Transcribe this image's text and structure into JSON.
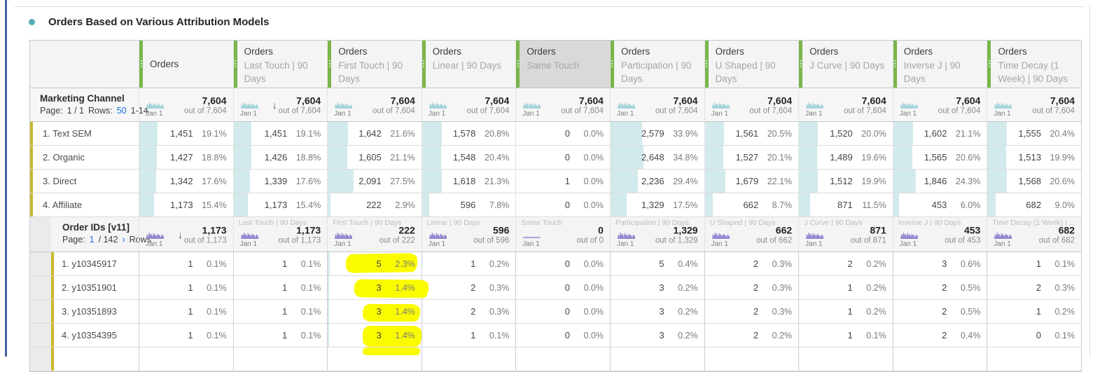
{
  "title": "Orders Based on Various Attribution Models",
  "icons": {
    "sort_desc": "↓",
    "chevron_right": "›",
    "panel_bullet": "dot",
    "sparkline": "area-sparkline"
  },
  "colors": {
    "accent_green": "#79b54a",
    "selected_header_bg": "#d9d9d9",
    "header_bg": "#f4f4f4",
    "bar_teal": "#d3eaec",
    "sparkline_teal": "#a6d4db",
    "sparkline_purple": "#9489d1",
    "highlight_yellow": "#fbfb00",
    "link_blue": "#1a6fe0",
    "row_accent_olive": "#c9b82f",
    "panel_line_blue": "#47609d",
    "title_bullet_teal": "#58abb4"
  },
  "columns": [
    {
      "metric": "Orders",
      "model": "",
      "selected": false
    },
    {
      "metric": "Orders",
      "model": "Last Touch | 90 Days",
      "selected": false
    },
    {
      "metric": "Orders",
      "model": "First Touch | 90 Days",
      "selected": false
    },
    {
      "metric": "Orders",
      "model": "Linear | 90 Days",
      "selected": false
    },
    {
      "metric": "Orders",
      "model": "Same Touch",
      "selected": true
    },
    {
      "metric": "Orders",
      "model": "Participation | 90 Days",
      "selected": false
    },
    {
      "metric": "Orders",
      "model": "U Shaped | 90 Days",
      "selected": false
    },
    {
      "metric": "Orders",
      "model": "J Curve | 90 Days",
      "selected": false
    },
    {
      "metric": "Orders",
      "model": "Inverse J | 90 Days",
      "selected": false
    },
    {
      "metric": "Orders",
      "model": "Time Decay (1 Week) | 90 Days",
      "selected": false
    }
  ],
  "channel_section": {
    "dimension": "Marketing Channel",
    "pager_parts": [
      {
        "text": "Page:",
        "link": false
      },
      {
        "text": "1 / 1",
        "link": false
      },
      {
        "text": "Rows:",
        "link": false
      },
      {
        "text": "50",
        "link": true
      },
      {
        "text": "1-14",
        "link": false
      }
    ],
    "sort_column": 1,
    "date_label": "Jan 1",
    "totals": [
      {
        "label": "",
        "value": "7,604",
        "out_of": "out of 7,604",
        "flat": false
      },
      {
        "label": "",
        "value": "7,604",
        "out_of": "out of 7,604",
        "flat": false
      },
      {
        "label": "",
        "value": "7,604",
        "out_of": "out of 7,604",
        "flat": false
      },
      {
        "label": "",
        "value": "7,604",
        "out_of": "out of 7,604",
        "flat": false
      },
      {
        "label": "",
        "value": "7,604",
        "out_of": "out of 7,604",
        "flat": false
      },
      {
        "label": "",
        "value": "7,604",
        "out_of": "out of 7,604",
        "flat": false
      },
      {
        "label": "",
        "value": "7,604",
        "out_of": "out of 7,604",
        "flat": false
      },
      {
        "label": "",
        "value": "7,604",
        "out_of": "out of 7,604",
        "flat": false
      },
      {
        "label": "",
        "value": "7,604",
        "out_of": "out of 7,604",
        "flat": false
      },
      {
        "label": "",
        "value": "7,604",
        "out_of": "out of 7,604",
        "flat": false
      }
    ],
    "rows": [
      {
        "label": "1. Text SEM",
        "cells": [
          {
            "v": "1,451",
            "p": "19.1%"
          },
          {
            "v": "1,451",
            "p": "19.1%"
          },
          {
            "v": "1,642",
            "p": "21.6%"
          },
          {
            "v": "1,578",
            "p": "20.8%"
          },
          {
            "v": "0",
            "p": "0.0%"
          },
          {
            "v": "2,579",
            "p": "33.9%"
          },
          {
            "v": "1,561",
            "p": "20.5%"
          },
          {
            "v": "1,520",
            "p": "20.0%"
          },
          {
            "v": "1,602",
            "p": "21.1%"
          },
          {
            "v": "1,555",
            "p": "20.4%"
          }
        ]
      },
      {
        "label": "2. Organic",
        "cells": [
          {
            "v": "1,427",
            "p": "18.8%"
          },
          {
            "v": "1,426",
            "p": "18.8%"
          },
          {
            "v": "1,605",
            "p": "21.1%"
          },
          {
            "v": "1,548",
            "p": "20.4%"
          },
          {
            "v": "0",
            "p": "0.0%"
          },
          {
            "v": "2,648",
            "p": "34.8%"
          },
          {
            "v": "1,527",
            "p": "20.1%"
          },
          {
            "v": "1,489",
            "p": "19.6%"
          },
          {
            "v": "1,565",
            "p": "20.6%"
          },
          {
            "v": "1,513",
            "p": "19.9%"
          }
        ]
      },
      {
        "label": "3. Direct",
        "cells": [
          {
            "v": "1,342",
            "p": "17.6%"
          },
          {
            "v": "1,339",
            "p": "17.6%"
          },
          {
            "v": "2,091",
            "p": "27.5%"
          },
          {
            "v": "1,618",
            "p": "21.3%"
          },
          {
            "v": "1",
            "p": "0.0%"
          },
          {
            "v": "2,236",
            "p": "29.4%"
          },
          {
            "v": "1,679",
            "p": "22.1%"
          },
          {
            "v": "1,512",
            "p": "19.9%"
          },
          {
            "v": "1,846",
            "p": "24.3%"
          },
          {
            "v": "1,568",
            "p": "20.6%"
          }
        ]
      },
      {
        "label": "4. Affiliate",
        "cells": [
          {
            "v": "1,173",
            "p": "15.4%"
          },
          {
            "v": "1,173",
            "p": "15.4%"
          },
          {
            "v": "222",
            "p": "2.9%"
          },
          {
            "v": "596",
            "p": "7.8%"
          },
          {
            "v": "0",
            "p": "0.0%"
          },
          {
            "v": "1,329",
            "p": "17.5%"
          },
          {
            "v": "662",
            "p": "8.7%"
          },
          {
            "v": "871",
            "p": "11.5%"
          },
          {
            "v": "453",
            "p": "6.0%"
          },
          {
            "v": "682",
            "p": "9.0%"
          }
        ]
      }
    ]
  },
  "orders_section": {
    "dimension": "Order IDs [v11]",
    "pager_parts": [
      {
        "text": "Page:",
        "link": false
      },
      {
        "text": "1",
        "link": true
      },
      {
        "text": "/ 142",
        "link": false
      },
      {
        "text": "›",
        "link": true
      },
      {
        "text": "Rows",
        "link": false
      }
    ],
    "sort_column": 0,
    "date_label": "Jan 1",
    "totals": [
      {
        "label": "",
        "value": "1,173",
        "out_of": "out of 1,173",
        "flat": false
      },
      {
        "label": "Last Touch | 90 Days",
        "value": "1,173",
        "out_of": "out of 1,173",
        "flat": false
      },
      {
        "label": "First Touch | 90 Days",
        "value": "222",
        "out_of": "out of 222",
        "flat": false
      },
      {
        "label": "Linear | 90 Days",
        "value": "596",
        "out_of": "out of 596",
        "flat": false
      },
      {
        "label": "Same Touch",
        "value": "0",
        "out_of": "out of 0",
        "flat": true
      },
      {
        "label": "Participation | 90 Days",
        "value": "1,329",
        "out_of": "out of 1,329",
        "flat": false
      },
      {
        "label": "U Shaped | 90 Days",
        "value": "662",
        "out_of": "out of 662",
        "flat": false
      },
      {
        "label": "J Curve | 90 Days",
        "value": "871",
        "out_of": "out of 871",
        "flat": false
      },
      {
        "label": "Inverse J | 90 Days",
        "value": "453",
        "out_of": "out of 453",
        "flat": false
      },
      {
        "label": "Time Decay (1 Week) | ...",
        "value": "682",
        "out_of": "out of 682",
        "flat": false
      }
    ],
    "rows": [
      {
        "label": "1. y10345917",
        "cells": [
          {
            "v": "1",
            "p": "0.1%"
          },
          {
            "v": "1",
            "p": "0.1%"
          },
          {
            "v": "5",
            "p": "2.3%",
            "hl": true
          },
          {
            "v": "1",
            "p": "0.2%"
          },
          {
            "v": "0",
            "p": "0.0%"
          },
          {
            "v": "5",
            "p": "0.4%"
          },
          {
            "v": "2",
            "p": "0.3%"
          },
          {
            "v": "2",
            "p": "0.2%"
          },
          {
            "v": "3",
            "p": "0.6%"
          },
          {
            "v": "1",
            "p": "0.1%"
          }
        ]
      },
      {
        "label": "2. y10351901",
        "cells": [
          {
            "v": "1",
            "p": "0.1%"
          },
          {
            "v": "1",
            "p": "0.1%"
          },
          {
            "v": "3",
            "p": "1.4%",
            "hl": true
          },
          {
            "v": "2",
            "p": "0.3%"
          },
          {
            "v": "0",
            "p": "0.0%"
          },
          {
            "v": "3",
            "p": "0.2%"
          },
          {
            "v": "2",
            "p": "0.3%"
          },
          {
            "v": "1",
            "p": "0.2%"
          },
          {
            "v": "2",
            "p": "0.5%"
          },
          {
            "v": "2",
            "p": "0.3%"
          }
        ]
      },
      {
        "label": "3. y10351893",
        "cells": [
          {
            "v": "1",
            "p": "0.1%"
          },
          {
            "v": "1",
            "p": "0.1%"
          },
          {
            "v": "3",
            "p": "1.4%",
            "hl": true
          },
          {
            "v": "2",
            "p": "0.3%"
          },
          {
            "v": "0",
            "p": "0.0%"
          },
          {
            "v": "3",
            "p": "0.2%"
          },
          {
            "v": "2",
            "p": "0.3%"
          },
          {
            "v": "1",
            "p": "0.2%"
          },
          {
            "v": "2",
            "p": "0.5%"
          },
          {
            "v": "1",
            "p": "0.2%"
          }
        ]
      },
      {
        "label": "4. y10354395",
        "cells": [
          {
            "v": "1",
            "p": "0.1%"
          },
          {
            "v": "1",
            "p": "0.1%"
          },
          {
            "v": "3",
            "p": "1.4%",
            "hl": true
          },
          {
            "v": "1",
            "p": "0.1%"
          },
          {
            "v": "0",
            "p": "0.0%"
          },
          {
            "v": "3",
            "p": "0.2%"
          },
          {
            "v": "2",
            "p": "0.2%"
          },
          {
            "v": "1",
            "p": "0.1%"
          },
          {
            "v": "2",
            "p": "0.4%"
          },
          {
            "v": "0",
            "p": "0.1%"
          }
        ]
      }
    ],
    "partial_row": {
      "highlighted_column": 2
    }
  }
}
